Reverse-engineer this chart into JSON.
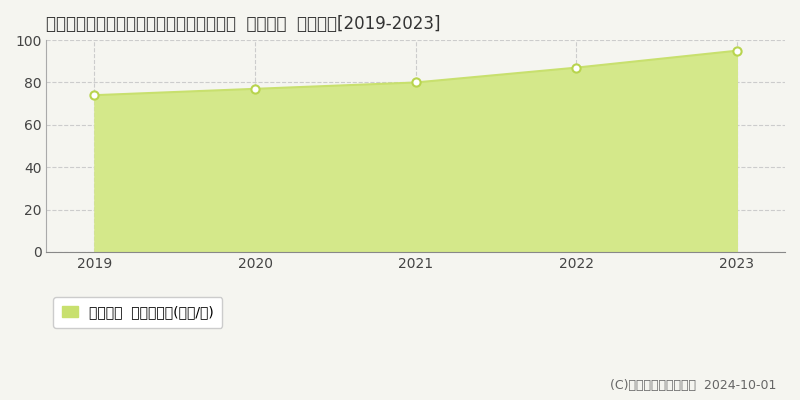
{
  "title": "茨城県つくば市研究学園５丁目１２番４外  基準地価  地価推移[2019-2023]",
  "years": [
    2019,
    2020,
    2021,
    2022,
    2023
  ],
  "values": [
    74.0,
    77.0,
    80.0,
    87.0,
    95.0
  ],
  "line_color": "#c8e06e",
  "fill_color": "#d4e88a",
  "fill_alpha": 1.0,
  "marker_color": "#ffffff",
  "marker_edge_color": "#b8d44e",
  "grid_color": "#cccccc",
  "background_color": "#f5f5f0",
  "plot_bg_color": "#f5f5f0",
  "ylim": [
    0,
    100
  ],
  "yticks": [
    0,
    20,
    40,
    60,
    80,
    100
  ],
  "legend_label": "基準地価  平均坪単価(万円/坪)",
  "copyright_text": "(C)土地価格ドットコム  2024-10-01",
  "title_fontsize": 12,
  "tick_fontsize": 10,
  "legend_fontsize": 10,
  "copyright_fontsize": 9
}
